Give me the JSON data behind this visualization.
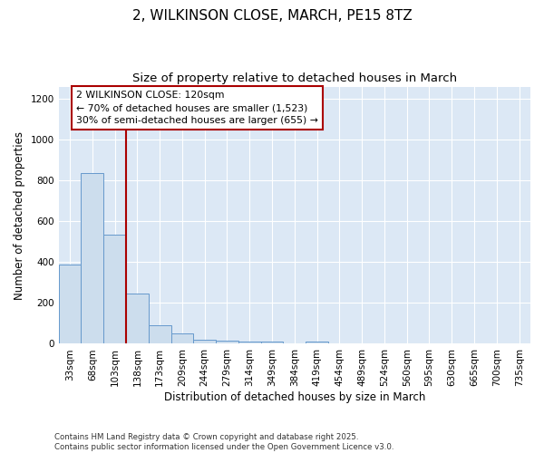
{
  "title": "2, WILKINSON CLOSE, MARCH, PE15 8TZ",
  "subtitle": "Size of property relative to detached houses in March",
  "xlabel": "Distribution of detached houses by size in March",
  "ylabel": "Number of detached properties",
  "categories": [
    "33sqm",
    "68sqm",
    "103sqm",
    "138sqm",
    "173sqm",
    "209sqm",
    "244sqm",
    "279sqm",
    "314sqm",
    "349sqm",
    "384sqm",
    "419sqm",
    "454sqm",
    "489sqm",
    "524sqm",
    "560sqm",
    "595sqm",
    "630sqm",
    "665sqm",
    "700sqm",
    "735sqm"
  ],
  "values": [
    390,
    835,
    535,
    248,
    93,
    53,
    20,
    15,
    12,
    10,
    0,
    12,
    0,
    0,
    0,
    0,
    0,
    0,
    0,
    0,
    0
  ],
  "bar_color": "#ccdded",
  "bar_edge_color": "#6699cc",
  "vline_x": 2.5,
  "vline_color": "#aa0000",
  "annotation_text": "2 WILKINSON CLOSE: 120sqm\n← 70% of detached houses are smaller (1,523)\n30% of semi-detached houses are larger (655) →",
  "annotation_box_color": "#ffffff",
  "annotation_box_edge": "#aa0000",
  "ylim": [
    0,
    1260
  ],
  "yticks": [
    0,
    200,
    400,
    600,
    800,
    1000,
    1200
  ],
  "background_color": "#dce8f5",
  "footer_text": "Contains HM Land Registry data © Crown copyright and database right 2025.\nContains public sector information licensed under the Open Government Licence v3.0.",
  "title_fontsize": 11,
  "subtitle_fontsize": 9.5,
  "tick_fontsize": 7.5,
  "label_fontsize": 8.5,
  "annotation_fontsize": 7.8
}
